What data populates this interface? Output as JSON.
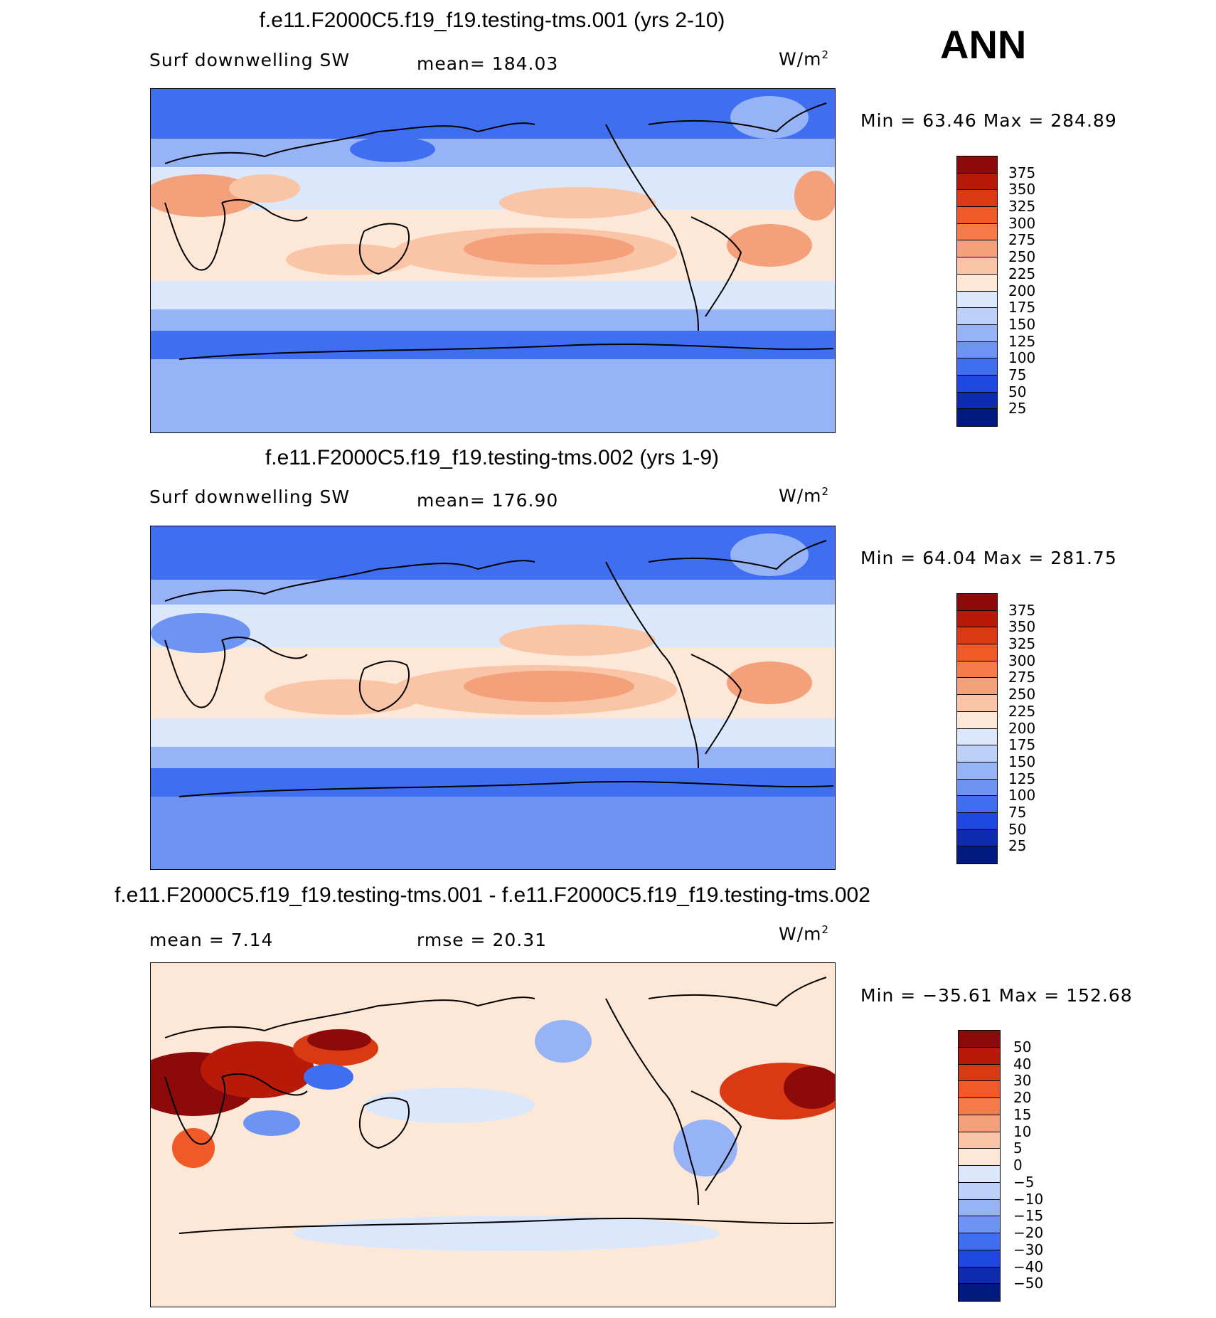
{
  "season": "ANN",
  "variable": "Surf downwelling SW",
  "units_base": "W/m",
  "units_exp": "2",
  "panels": [
    {
      "title": "f.e11.F2000C5.f19_f19.testing-tms.001 (yrs 2-10)",
      "mean_text": "mean=  184.03",
      "minmax_text": "Min =   63.46  Max  =  284.89"
    },
    {
      "title": "f.e11.F2000C5.f19_f19.testing-tms.002 (yrs 1-9)",
      "mean_text": "mean=  176.90",
      "minmax_text": "Min =   64.04  Max  =  281.75"
    },
    {
      "title": "f.e11.F2000C5.f19_f19.testing-tms.001 - f.e11.F2000C5.f19_f19.testing-tms.002",
      "mean_text": "mean  =     7.14",
      "rmse_text": "rmse  =   20.31",
      "minmax_text": "Min  =  −35.61  Max  =  152.68"
    }
  ],
  "colorbar_abs": {
    "levels": [
      "375",
      "350",
      "325",
      "300",
      "275",
      "250",
      "225",
      "200",
      "175",
      "150",
      "125",
      "100",
      "75",
      "50",
      "25"
    ],
    "colors": [
      "#8c0a0a",
      "#b81a0a",
      "#d93a14",
      "#f05a28",
      "#f57c4a",
      "#f4a07a",
      "#fac4a6",
      "#fde8d8",
      "#dbe8fb",
      "#bcd0f8",
      "#96b4f5",
      "#6d94f2",
      "#3f6ef0",
      "#1f48e0",
      "#0d2cb0",
      "#001a80"
    ]
  },
  "colorbar_diff": {
    "levels": [
      "50",
      "40",
      "30",
      "20",
      "15",
      "10",
      "5",
      "0",
      "−5",
      "−10",
      "−15",
      "−20",
      "−30",
      "−40",
      "−50"
    ],
    "colors": [
      "#8c0a0a",
      "#b81a0a",
      "#d93a14",
      "#f05a28",
      "#f57c4a",
      "#f4a07a",
      "#fac4a6",
      "#fde8d8",
      "#dbe8fb",
      "#bcd0f8",
      "#96b4f5",
      "#6d94f2",
      "#3f6ef0",
      "#1f48e0",
      "#0d2cb0",
      "#001a80"
    ]
  },
  "chart_data": [
    {
      "type": "heatmap",
      "title": "f.e11.F2000C5.f19_f19.testing-tms.001 (yrs 2-10)",
      "variable": "Surf downwelling SW",
      "units": "W/m2",
      "mean": 184.03,
      "min": 63.46,
      "max": 284.89,
      "contour_levels": [
        25,
        50,
        75,
        100,
        125,
        150,
        175,
        200,
        225,
        250,
        275,
        300,
        325,
        350,
        375
      ]
    },
    {
      "type": "heatmap",
      "title": "f.e11.F2000C5.f19_f19.testing-tms.002 (yrs 1-9)",
      "variable": "Surf downwelling SW",
      "units": "W/m2",
      "mean": 176.9,
      "min": 64.04,
      "max": 281.75,
      "contour_levels": [
        25,
        50,
        75,
        100,
        125,
        150,
        175,
        200,
        225,
        250,
        275,
        300,
        325,
        350,
        375
      ]
    },
    {
      "type": "heatmap",
      "title": "f.e11.F2000C5.f19_f19.testing-tms.001 - f.e11.F2000C5.f19_f19.testing-tms.002",
      "units": "W/m2",
      "mean": 7.14,
      "rmse": 20.31,
      "min": -35.61,
      "max": 152.68,
      "contour_levels": [
        -50,
        -40,
        -30,
        -20,
        -15,
        -10,
        -5,
        0,
        5,
        10,
        15,
        20,
        30,
        40,
        50
      ]
    }
  ]
}
